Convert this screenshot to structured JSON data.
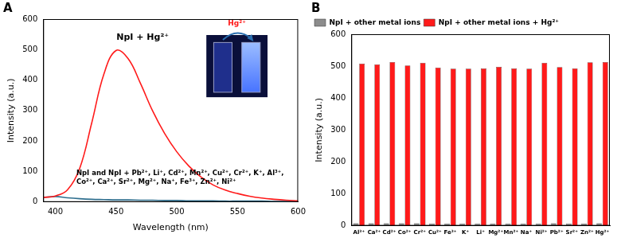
{
  "chart_data": [
    {
      "type": "line",
      "title": "A",
      "x_label": "Wavelength (nm)",
      "y_label": "Intensity (a.u.)",
      "x": [
        390,
        400,
        410,
        420,
        430,
        440,
        450,
        460,
        470,
        480,
        490,
        500,
        510,
        520,
        530,
        540,
        550,
        560,
        570,
        580,
        590,
        600
      ],
      "series": [
        {
          "name": "NpI + Hg²⁺",
          "color": "#ff1a1a",
          "values": [
            15,
            20,
            40,
            110,
            260,
            420,
            497,
            470,
            390,
            300,
            225,
            165,
            118,
            82,
            56,
            39,
            28,
            19,
            13,
            9,
            6,
            4
          ]
        },
        {
          "name": "NpI and NpI + Pb²⁺, Li⁺, Cd²⁺, Mn²⁺, Cu²⁺, Cr²⁺, K⁺, Al³⁺, Co²⁺, Ca²⁺, Sr²⁺, Mg²⁺, Na⁺, Fe³⁺, Zn²⁺, Ni²⁺",
          "color": "#2f6f8f",
          "values": [
            15,
            18,
            14,
            11,
            9,
            8,
            7,
            7,
            6,
            6,
            5,
            5,
            4,
            4,
            4,
            3,
            3,
            3,
            3,
            2,
            2,
            2
          ]
        }
      ],
      "xlim": [
        390,
        600
      ],
      "xticks": [
        400,
        450,
        500,
        550,
        600
      ],
      "ylim": [
        0,
        600
      ],
      "yticks": [
        0,
        100,
        200,
        300,
        400,
        500,
        600
      ],
      "grid": false,
      "annotations": [
        "Hg²⁺"
      ]
    },
    {
      "type": "bar",
      "title": "B",
      "y_label": "Intensity (a.u.)",
      "categories": [
        "Al³⁺",
        "Ca²⁺",
        "Cd²⁺",
        "Co²⁺",
        "Cr²⁺",
        "Cu²⁺",
        "Fe³⁺",
        "K⁺",
        "Li⁺",
        "Mg²⁺",
        "Mn²⁺",
        "Na⁺",
        "Ni²⁺",
        "Pb²⁺",
        "Sr²⁺",
        "Zn²⁺",
        "Hg²⁺"
      ],
      "series": [
        {
          "name": "NpI + other metal ions",
          "color": "#8c8c8c",
          "values": [
            8,
            8,
            8,
            8,
            8,
            7,
            7,
            7,
            7,
            7,
            7,
            7,
            7,
            8,
            7,
            7,
            8
          ]
        },
        {
          "name": "NpI + other metal ions + Hg²⁺",
          "color": "#ff1a1a",
          "values": [
            508,
            505,
            513,
            502,
            510,
            495,
            492,
            492,
            493,
            498,
            493,
            492,
            510,
            497,
            493,
            512,
            513
          ]
        }
      ],
      "ylim": [
        0,
        600
      ],
      "yticks": [
        0,
        100,
        200,
        300,
        400,
        500,
        600
      ],
      "grid": false,
      "legend": "upper left"
    }
  ]
}
